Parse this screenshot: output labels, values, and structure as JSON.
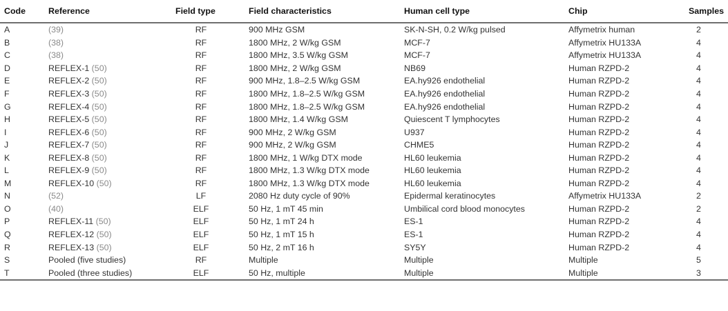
{
  "headers": {
    "code": "Code",
    "reference": "Reference",
    "field_type": "Field type",
    "field_characteristics": "Field characteristics",
    "human_cell_type": "Human cell type",
    "chip": "Chip",
    "samples": "Samples"
  },
  "rows": [
    {
      "code": "A",
      "ref_text": "",
      "ref_cite": "(39)",
      "field_type": "RF",
      "field_char": "900 MHz GSM",
      "cell_type": "SK-N-SH, 0.2 W/kg pulsed",
      "chip": "Affymetrix human",
      "samples": "2"
    },
    {
      "code": "B",
      "ref_text": "",
      "ref_cite": "(38)",
      "field_type": "RF",
      "field_char": "1800 MHz, 2 W/kg GSM",
      "cell_type": "MCF-7",
      "chip": "Affymetrix HU133A",
      "samples": "4"
    },
    {
      "code": "C",
      "ref_text": "",
      "ref_cite": "(38)",
      "field_type": "RF",
      "field_char": "1800 MHz, 3.5 W/kg GSM",
      "cell_type": "MCF-7",
      "chip": "Affymetrix HU133A",
      "samples": "4"
    },
    {
      "code": "D",
      "ref_text": "REFLEX-1 ",
      "ref_cite": "(50)",
      "field_type": "RF",
      "field_char": "1800 MHz, 2 W/kg GSM",
      "cell_type": "NB69",
      "chip": "Human RZPD-2",
      "samples": "4"
    },
    {
      "code": "E",
      "ref_text": "REFLEX-2 ",
      "ref_cite": "(50)",
      "field_type": "RF",
      "field_char": "900 MHz, 1.8–2.5 W/kg GSM",
      "cell_type": "EA.hy926 endothelial",
      "chip": "Human RZPD-2",
      "samples": "4"
    },
    {
      "code": "F",
      "ref_text": "REFLEX-3 ",
      "ref_cite": "(50)",
      "field_type": "RF",
      "field_char": "1800 MHz, 1.8–2.5 W/kg GSM",
      "cell_type": "EA.hy926 endothelial",
      "chip": "Human RZPD-2",
      "samples": "4"
    },
    {
      "code": "G",
      "ref_text": "REFLEX-4 ",
      "ref_cite": "(50)",
      "field_type": "RF",
      "field_char": "1800 MHz, 1.8–2.5 W/kg GSM",
      "cell_type": "EA.hy926 endothelial",
      "chip": "Human RZPD-2",
      "samples": "4"
    },
    {
      "code": "H",
      "ref_text": "REFLEX-5 ",
      "ref_cite": "(50)",
      "field_type": "RF",
      "field_char": "1800 MHz, 1.4 W/kg GSM",
      "cell_type": "Quiescent T lymphocytes",
      "chip": "Human RZPD-2",
      "samples": "4"
    },
    {
      "code": "I",
      "ref_text": "REFLEX-6 ",
      "ref_cite": "(50)",
      "field_type": "RF",
      "field_char": "900 MHz, 2 W/kg GSM",
      "cell_type": "U937",
      "chip": "Human RZPD-2",
      "samples": "4"
    },
    {
      "code": "J",
      "ref_text": "REFLEX-7 ",
      "ref_cite": "(50)",
      "field_type": "RF",
      "field_char": "900 MHz, 2 W/kg GSM",
      "cell_type": "CHME5",
      "chip": "Human RZPD-2",
      "samples": "4"
    },
    {
      "code": "K",
      "ref_text": "REFLEX-8 ",
      "ref_cite": "(50)",
      "field_type": "RF",
      "field_char": "1800 MHz, 1 W/kg DTX mode",
      "cell_type": "HL60 leukemia",
      "chip": "Human RZPD-2",
      "samples": "4"
    },
    {
      "code": "L",
      "ref_text": "REFLEX-9 ",
      "ref_cite": "(50)",
      "field_type": "RF",
      "field_char": "1800 MHz, 1.3 W/kg DTX mode",
      "cell_type": "HL60 leukemia",
      "chip": "Human RZPD-2",
      "samples": "4"
    },
    {
      "code": "M",
      "ref_text": "REFLEX-10 ",
      "ref_cite": "(50)",
      "field_type": "RF",
      "field_char": "1800 MHz, 1.3 W/kg DTX mode",
      "cell_type": "HL60 leukemia",
      "chip": "Human RZPD-2",
      "samples": "4"
    },
    {
      "code": "N",
      "ref_text": "",
      "ref_cite": "(52)",
      "field_type": "LF",
      "field_char": "2080 Hz duty cycle of 90%",
      "cell_type": "Epidermal keratinocytes",
      "chip": "Affymetrix HU133A",
      "samples": "2"
    },
    {
      "code": "O",
      "ref_text": "",
      "ref_cite": "(40)",
      "field_type": "ELF",
      "field_char": "50 Hz, 1 mT 45 min",
      "cell_type": "Umbilical cord blood monocytes",
      "chip": "Human RZPD-2",
      "samples": "2"
    },
    {
      "code": "P",
      "ref_text": "REFLEX-11 ",
      "ref_cite": "(50)",
      "field_type": "ELF",
      "field_char": "50 Hz, 1 mT 24 h",
      "cell_type": "ES-1",
      "chip": "Human RZPD-2",
      "samples": "4"
    },
    {
      "code": "Q",
      "ref_text": "REFLEX-12 ",
      "ref_cite": "(50)",
      "field_type": "ELF",
      "field_char": "50 Hz, 1 mT 15 h",
      "cell_type": "ES-1",
      "chip": "Human RZPD-2",
      "samples": "4"
    },
    {
      "code": "R",
      "ref_text": "REFLEX-13 ",
      "ref_cite": "(50)",
      "field_type": "ELF",
      "field_char": "50 Hz, 2 mT 16 h",
      "cell_type": "SY5Y",
      "chip": "Human RZPD-2",
      "samples": "4"
    },
    {
      "code": "S",
      "ref_text": "Pooled (five studies)",
      "ref_cite": "",
      "field_type": "RF",
      "field_char": "Multiple",
      "cell_type": "Multiple",
      "chip": "Multiple",
      "samples": "5"
    },
    {
      "code": "T",
      "ref_text": "Pooled (three studies)",
      "ref_cite": "",
      "field_type": "ELF",
      "field_char": "50 Hz, multiple",
      "cell_type": "Multiple",
      "chip": "Multiple",
      "samples": "3"
    }
  ]
}
